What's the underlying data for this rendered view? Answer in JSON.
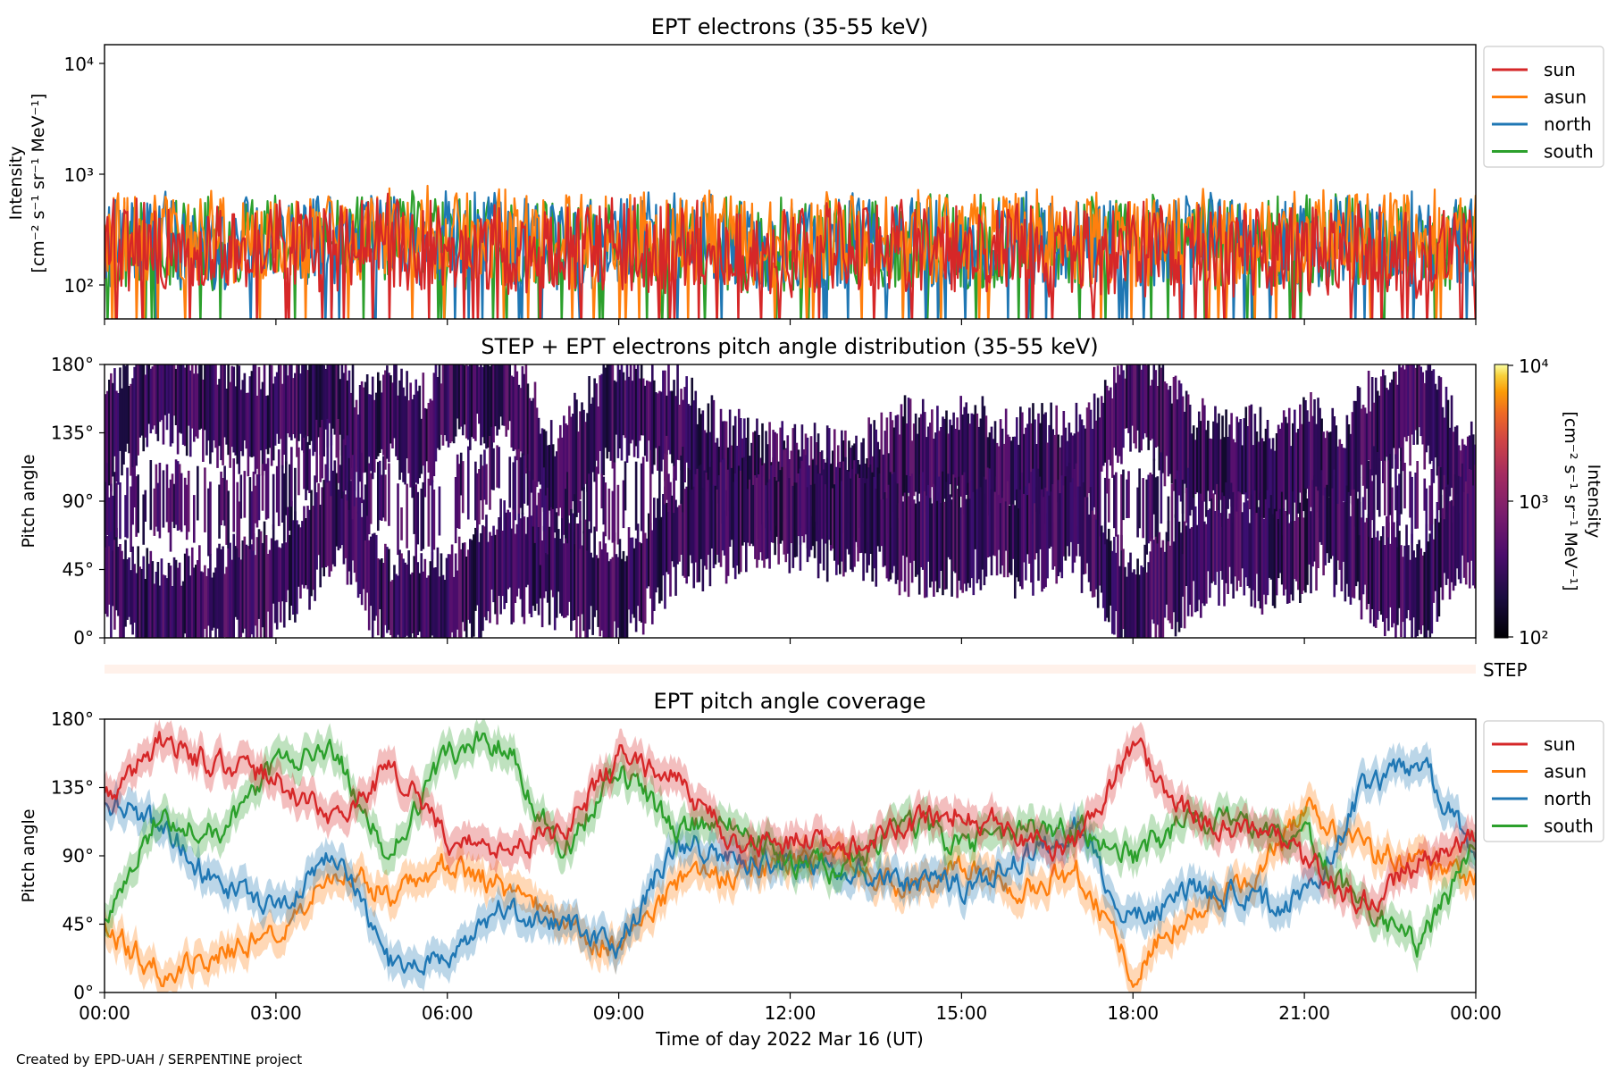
{
  "figure": {
    "footer": "Created by EPD-UAH / SERPENTINE project",
    "xlabel": "Time of day 2022 Mar 16 (UT)",
    "x_ticks": [
      "00:00",
      "03:00",
      "06:00",
      "09:00",
      "12:00",
      "15:00",
      "18:00",
      "21:00",
      "00:00"
    ]
  },
  "panels": {
    "intensity": {
      "title": "EPT electrons (35-55 keV)",
      "ylabel_line1": "Intensity",
      "ylabel_line2": "[cm⁻² s⁻¹ sr⁻¹ MeV⁻¹]",
      "y_ticks": [
        "10⁴",
        "10³",
        "10²"
      ]
    },
    "pad": {
      "title": "STEP + EPT electrons pitch angle distribution (35-55 keV)",
      "ylabel": "Pitch angle",
      "y_ticks": [
        "180°",
        "135°",
        "90°",
        "45°",
        "0°"
      ],
      "colorbar_label": "Intensity",
      "colorbar_units": "[cm⁻² s⁻¹ sr⁻¹ MeV⁻¹]",
      "colorbar_ticks": [
        "10⁴",
        "10³",
        "10²"
      ]
    },
    "step": {
      "label": "STEP"
    },
    "coverage": {
      "title": "EPT pitch angle coverage",
      "ylabel": "Pitch angle",
      "y_ticks": [
        "180°",
        "135°",
        "90°",
        "45°",
        "0°"
      ]
    }
  },
  "legend": [
    {
      "name": "sun",
      "color": "#d62728"
    },
    {
      "name": "asun",
      "color": "#ff7f0e"
    },
    {
      "name": "north",
      "color": "#1f77b4"
    },
    {
      "name": "south",
      "color": "#2ca02c"
    }
  ],
  "chart_data": [
    {
      "type": "line",
      "title": "EPT electrons (35-55 keV)",
      "xlabel": "Time of day 2022 Mar 16 (UT)",
      "ylabel": "Intensity [cm⁻² s⁻¹ sr⁻¹ MeV⁻¹]",
      "yscale": "log",
      "ylim": [
        50,
        15000
      ],
      "xlim_hours": [
        0,
        24
      ],
      "x_hours": [
        0,
        1,
        2,
        3,
        4,
        5,
        6,
        7,
        8,
        9,
        10,
        11,
        12,
        13,
        14,
        15,
        16,
        17,
        18,
        19,
        20,
        21,
        22,
        23,
        24
      ],
      "series": [
        {
          "name": "sun",
          "values": [
            210,
            220,
            200,
            230,
            210,
            240,
            220,
            210,
            200,
            220,
            210,
            200,
            190,
            200,
            210,
            200,
            210,
            190,
            200,
            210,
            190,
            200,
            210,
            190,
            200
          ]
        },
        {
          "name": "asun",
          "values": [
            260,
            270,
            250,
            280,
            260,
            300,
            270,
            260,
            250,
            270,
            260,
            250,
            240,
            250,
            260,
            250,
            270,
            240,
            250,
            270,
            240,
            250,
            270,
            260,
            260
          ]
        },
        {
          "name": "north",
          "values": [
            240,
            250,
            230,
            260,
            250,
            270,
            250,
            240,
            230,
            250,
            240,
            230,
            230,
            240,
            250,
            240,
            250,
            230,
            240,
            250,
            230,
            240,
            250,
            250,
            240
          ]
        },
        {
          "name": "south",
          "values": [
            230,
            240,
            220,
            250,
            240,
            260,
            240,
            230,
            220,
            240,
            230,
            220,
            220,
            230,
            240,
            230,
            240,
            220,
            230,
            240,
            220,
            230,
            240,
            240,
            230
          ]
        }
      ],
      "legend": "upper right, outside"
    },
    {
      "type": "heatmap",
      "title": "STEP + EPT electrons pitch angle distribution (35-55 keV)",
      "ylabel": "Pitch angle",
      "ylim": [
        0,
        180
      ],
      "colorbar": {
        "label": "Intensity [cm⁻² s⁻¹ sr⁻¹ MeV⁻¹]",
        "scale": "log",
        "range": [
          100,
          10000
        ],
        "colormap": "inferno"
      },
      "typical_intensity": 250
    },
    {
      "type": "line",
      "title": "EPT pitch angle coverage",
      "xlabel": "Time of day 2022 Mar 16 (UT)",
      "ylabel": "Pitch angle",
      "ylim": [
        0,
        180
      ],
      "xlim_hours": [
        0,
        24
      ],
      "x_hours": [
        0,
        1,
        2,
        3,
        4,
        5,
        6,
        7,
        8,
        9,
        10,
        11,
        12,
        13,
        14,
        15,
        16,
        17,
        18,
        19,
        20,
        21,
        22,
        23,
        24
      ],
      "series": [
        {
          "name": "sun",
          "values": [
            130,
            165,
            150,
            140,
            110,
            150,
            100,
            95,
            105,
            155,
            140,
            100,
            100,
            95,
            110,
            120,
            105,
            95,
            165,
            115,
            110,
            90,
            55,
            85,
            105
          ]
        },
        {
          "name": "asun",
          "values": [
            40,
            15,
            25,
            40,
            80,
            65,
            85,
            70,
            45,
            30,
            70,
            80,
            85,
            85,
            70,
            80,
            70,
            80,
            15,
            55,
            70,
            120,
            95,
            85,
            75
          ]
        },
        {
          "name": "north",
          "values": [
            130,
            110,
            70,
            55,
            95,
            20,
            20,
            55,
            45,
            30,
            100,
            90,
            85,
            85,
            70,
            70,
            85,
            110,
            45,
            70,
            60,
            60,
            130,
            155,
            90
          ]
        },
        {
          "name": "south",
          "values": [
            45,
            120,
            105,
            150,
            160,
            90,
            160,
            165,
            90,
            145,
            110,
            110,
            85,
            80,
            115,
            95,
            110,
            110,
            90,
            115,
            110,
            105,
            55,
            30,
            95
          ]
        }
      ],
      "legend": "upper right, outside"
    }
  ]
}
